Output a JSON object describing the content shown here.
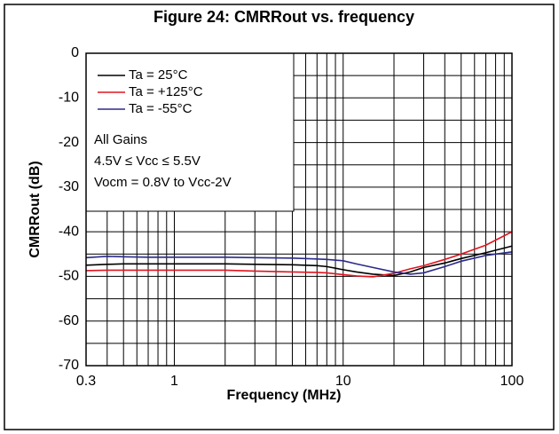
{
  "chart_data": {
    "type": "line",
    "title": "Figure 24: CMRRout vs. frequency",
    "xlabel": "Frequency (MHz)",
    "ylabel": "CMRRout (dB)",
    "xscale": "log",
    "xlim": [
      0.3,
      100
    ],
    "xticks": [
      0.3,
      1,
      10,
      100
    ],
    "xminor": [
      0.4,
      0.5,
      0.6,
      0.7,
      0.8,
      0.9,
      2,
      3,
      4,
      5,
      6,
      7,
      8,
      9,
      20,
      30,
      40,
      50,
      60,
      70,
      80,
      90
    ],
    "ylim": [
      -70,
      0
    ],
    "yticks": [
      0,
      -10,
      -20,
      -30,
      -40,
      -50,
      -60,
      -70
    ],
    "yminor": [
      -5,
      -15,
      -25,
      -35,
      -45,
      -55,
      -65
    ],
    "grid": true,
    "legend": "upper left",
    "x": [
      0.3,
      0.4,
      0.5,
      0.7,
      1,
      2,
      3,
      5,
      7,
      8,
      10,
      12,
      15,
      20,
      25,
      30,
      40,
      50,
      70,
      100
    ],
    "series": [
      {
        "name": "Ta = 25°C",
        "color": "#000000",
        "values": [
          -47.5,
          -47.3,
          -47.2,
          -47.2,
          -47.2,
          -47.2,
          -47.3,
          -47.4,
          -47.6,
          -47.8,
          -48.5,
          -49,
          -49.5,
          -49.8,
          -49,
          -48,
          -47,
          -46,
          -44.7,
          -43.2
        ]
      },
      {
        "name": "Ta = +125°C",
        "color": "#e0141e",
        "values": [
          -48.7,
          -48.6,
          -48.6,
          -48.6,
          -48.6,
          -48.6,
          -48.8,
          -49,
          -49.1,
          -49.2,
          -49.6,
          -49.9,
          -50.1,
          -49.3,
          -48.3,
          -47.6,
          -46.2,
          -45,
          -43,
          -40
        ]
      },
      {
        "name": "Ta = -55°C",
        "color": "#2a2a8c",
        "values": [
          -45.8,
          -45.5,
          -45.6,
          -45.7,
          -45.7,
          -45.7,
          -45.8,
          -45.9,
          -46.1,
          -46.2,
          -46.5,
          -47.2,
          -48,
          -49,
          -49.5,
          -49.2,
          -47.8,
          -46.6,
          -45.3,
          -44.5
        ]
      }
    ],
    "annotations": [
      "All Gains",
      "4.5V ≤ Vcc ≤ 5.5V",
      "Vocm = 0.8V to Vcc-2V"
    ]
  }
}
